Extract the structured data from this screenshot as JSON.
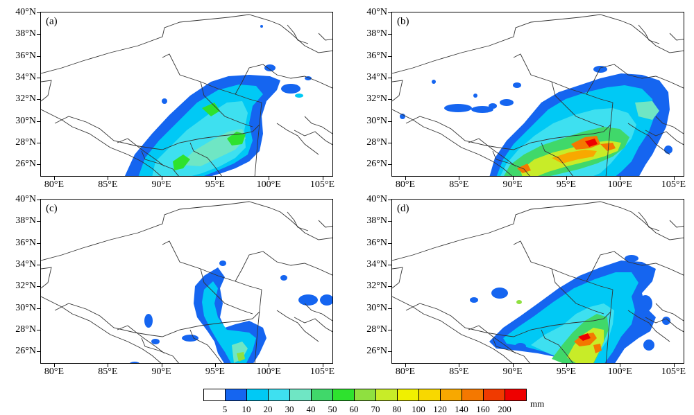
{
  "panels": [
    {
      "label": "(a)",
      "name": "panel-a"
    },
    {
      "label": "(b)",
      "name": "panel-b"
    },
    {
      "label": "(c)",
      "name": "panel-c"
    },
    {
      "label": "(d)",
      "name": "panel-d"
    }
  ],
  "y_ticks": [
    "40°N",
    "38°N",
    "36°N",
    "34°N",
    "32°N",
    "30°N",
    "28°N",
    "26°N"
  ],
  "x_ticks": [
    "80°E",
    "85°E",
    "90°E",
    "95°E",
    "100°E",
    "105°E"
  ],
  "colorbar": {
    "labels": [
      "5",
      "10",
      "20",
      "30",
      "40",
      "50",
      "60",
      "70",
      "80",
      "100",
      "120",
      "140",
      "160",
      "200"
    ],
    "unit": "mm",
    "colors": [
      "#ffffff",
      "#1565f0",
      "#00c9f5",
      "#3ee0f0",
      "#6fe6c4",
      "#40d86a",
      "#2ee22e",
      "#8fe040",
      "#c8ec28",
      "#f0f000",
      "#f8d800",
      "#f8a800",
      "#f47800",
      "#f03a00",
      "#ee0000"
    ]
  }
}
